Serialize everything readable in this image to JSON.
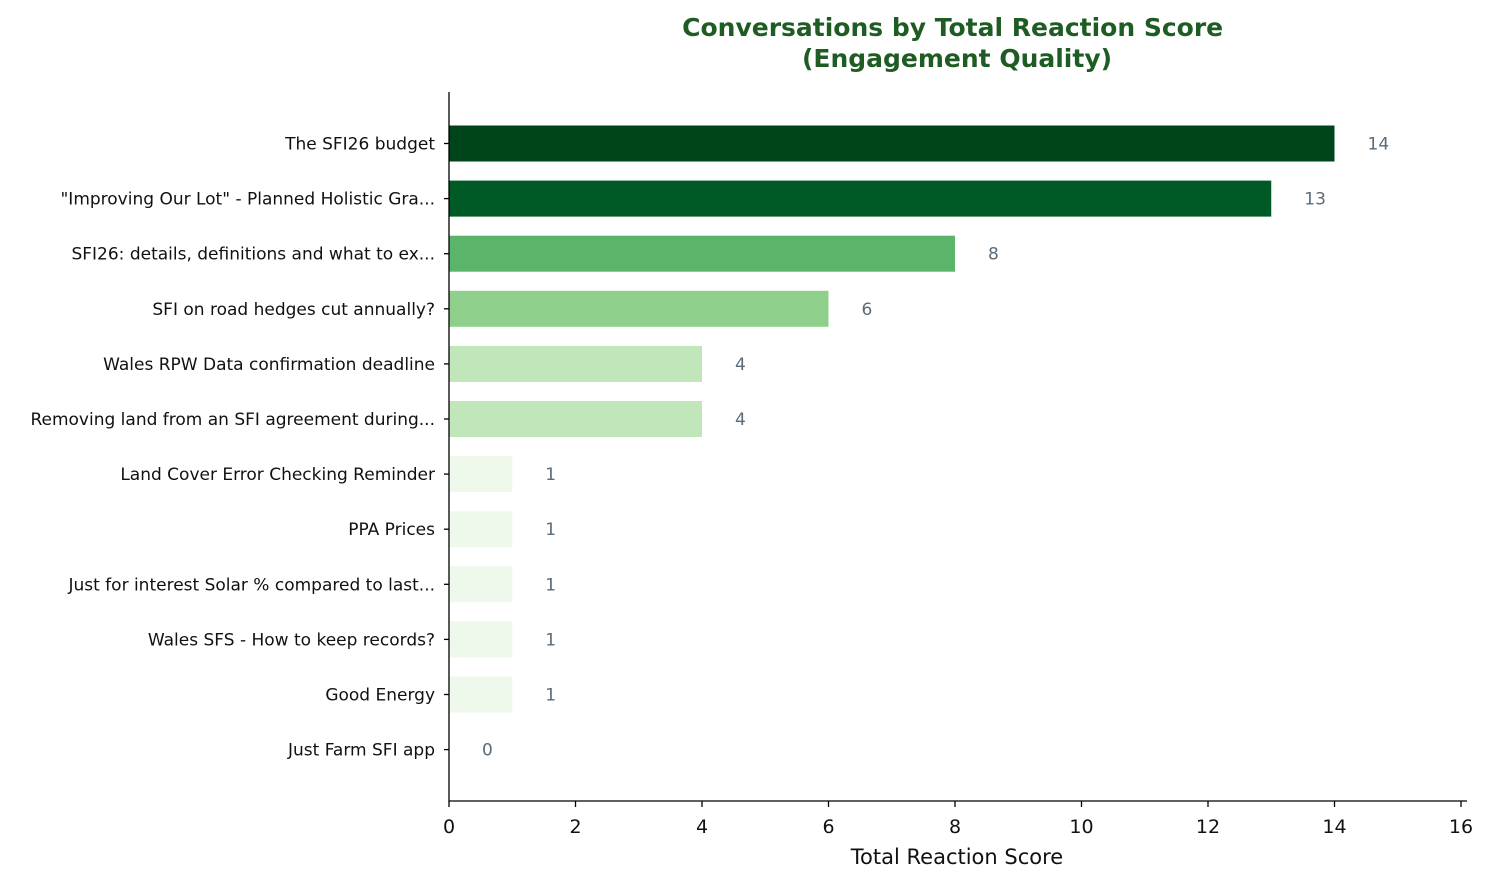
{
  "chart_data": {
    "type": "bar",
    "orientation": "horizontal",
    "title": "Conversations by Total Reaction Score\n(Engagement Quality)",
    "xlabel": "Total Reaction Score",
    "ylabel": "",
    "xlim": [
      0,
      16
    ],
    "xticks": [
      "0",
      "2",
      "4",
      "6",
      "8",
      "10",
      "12",
      "14",
      "16"
    ],
    "grid": false,
    "categories": [
      "The SFI26 budget",
      "\"Improving Our Lot\" - Planned Holistic Gra...",
      "SFI26: details, definitions and what to ex...",
      "SFI on road hedges cut annually?",
      "Wales RPW Data confirmation deadline",
      "Removing land from an SFI agreement during...",
      "Land Cover Error Checking Reminder",
      "PPA Prices",
      "Just for interest Solar % compared to last...",
      "Wales SFS - How to keep records?",
      "Good Energy",
      "Just Farm SFI app"
    ],
    "values": [
      14,
      13,
      8,
      6,
      4,
      4,
      1,
      1,
      1,
      1,
      1,
      0
    ],
    "value_labels": [
      "14",
      "13",
      "8",
      "6",
      "4",
      "4",
      "1",
      "1",
      "1",
      "1",
      "1",
      "0"
    ],
    "bar_colors": [
      "#00441b",
      "#005a25",
      "#5ab56b",
      "#8ed08b",
      "#c0e6b9",
      "#c0e6b9",
      "#eef8eb",
      "#eef8eb",
      "#eef8eb",
      "#eef8eb",
      "#eef8eb",
      "#f7fcf5"
    ],
    "title_color": "#1e5c23",
    "value_label_color": "#5a6b7a"
  }
}
